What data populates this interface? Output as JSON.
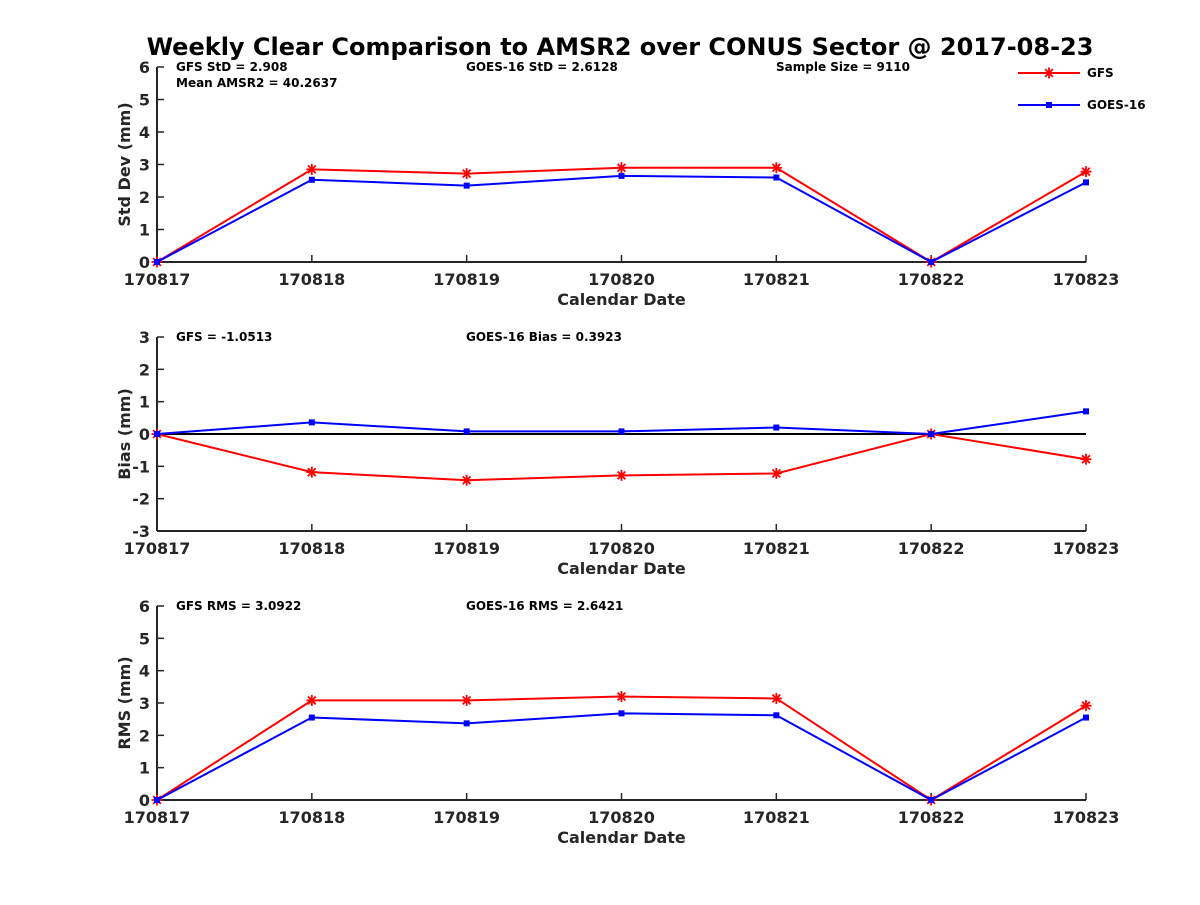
{
  "chart_data": {
    "type": "line",
    "title": "Weekly Clear Comparison to AMSR2 over CONUS Sector @ 2017-08-23",
    "categories": [
      "170817",
      "170818",
      "170819",
      "170820",
      "170821",
      "170822",
      "170823"
    ],
    "legend": {
      "placement": "top-right",
      "entries": [
        {
          "name": "GFS",
          "color": "#ff0000",
          "marker": "asterisk"
        },
        {
          "name": "GOES-16",
          "color": "#0000ff",
          "marker": "square"
        }
      ]
    },
    "panels": [
      {
        "id": "std",
        "ylabel": "Std Dev (mm)",
        "xlabel": "Calendar Date",
        "ylim": [
          0,
          6
        ],
        "yticks": [
          0,
          1,
          2,
          3,
          4,
          5,
          6
        ],
        "zero_line": false,
        "annotations": [
          {
            "text": "GFS StD = 2.908",
            "pos": "left"
          },
          {
            "text": "Mean AMSR2 = 40.2637",
            "pos": "left2"
          },
          {
            "text": "GOES-16 StD = 2.6128",
            "pos": "center"
          },
          {
            "text": "Sample Size = 9110",
            "pos": "right"
          }
        ],
        "series": [
          {
            "name": "GFS",
            "color": "#ff0000",
            "marker": "asterisk",
            "values": [
              0,
              2.85,
              2.72,
              2.9,
              2.9,
              0,
              2.78
            ]
          },
          {
            "name": "GOES-16",
            "color": "#0000ff",
            "marker": "square",
            "values": [
              0,
              2.53,
              2.35,
              2.65,
              2.6,
              0,
              2.45
            ]
          }
        ]
      },
      {
        "id": "bias",
        "ylabel": "Bias (mm)",
        "xlabel": "Calendar Date",
        "ylim": [
          -3,
          3
        ],
        "yticks": [
          -3,
          -2,
          -1,
          0,
          1,
          2,
          3
        ],
        "zero_line": true,
        "annotations": [
          {
            "text": "GFS = -1.0513",
            "pos": "left"
          },
          {
            "text": "GOES-16 Bias  = 0.3923",
            "pos": "center"
          }
        ],
        "series": [
          {
            "name": "GFS",
            "color": "#ff0000",
            "marker": "asterisk",
            "values": [
              0,
              -1.18,
              -1.43,
              -1.28,
              -1.22,
              0,
              -0.78
            ]
          },
          {
            "name": "GOES-16",
            "color": "#0000ff",
            "marker": "square",
            "values": [
              0,
              0.36,
              0.08,
              0.08,
              0.2,
              0,
              0.7
            ]
          }
        ]
      },
      {
        "id": "rms",
        "ylabel": "RMS (mm)",
        "xlabel": "Calendar Date",
        "ylim": [
          0,
          6
        ],
        "yticks": [
          0,
          1,
          2,
          3,
          4,
          5,
          6
        ],
        "zero_line": false,
        "annotations": [
          {
            "text": "GFS RMS = 3.0922",
            "pos": "left"
          },
          {
            "text": "GOES-16 RMS = 2.6421",
            "pos": "center"
          }
        ],
        "series": [
          {
            "name": "GFS",
            "color": "#ff0000",
            "marker": "asterisk",
            "values": [
              0,
              3.08,
              3.08,
              3.2,
              3.14,
              0,
              2.92
            ]
          },
          {
            "name": "GOES-16",
            "color": "#0000ff",
            "marker": "square",
            "values": [
              0,
              2.55,
              2.37,
              2.68,
              2.62,
              0,
              2.55
            ]
          }
        ]
      }
    ]
  }
}
